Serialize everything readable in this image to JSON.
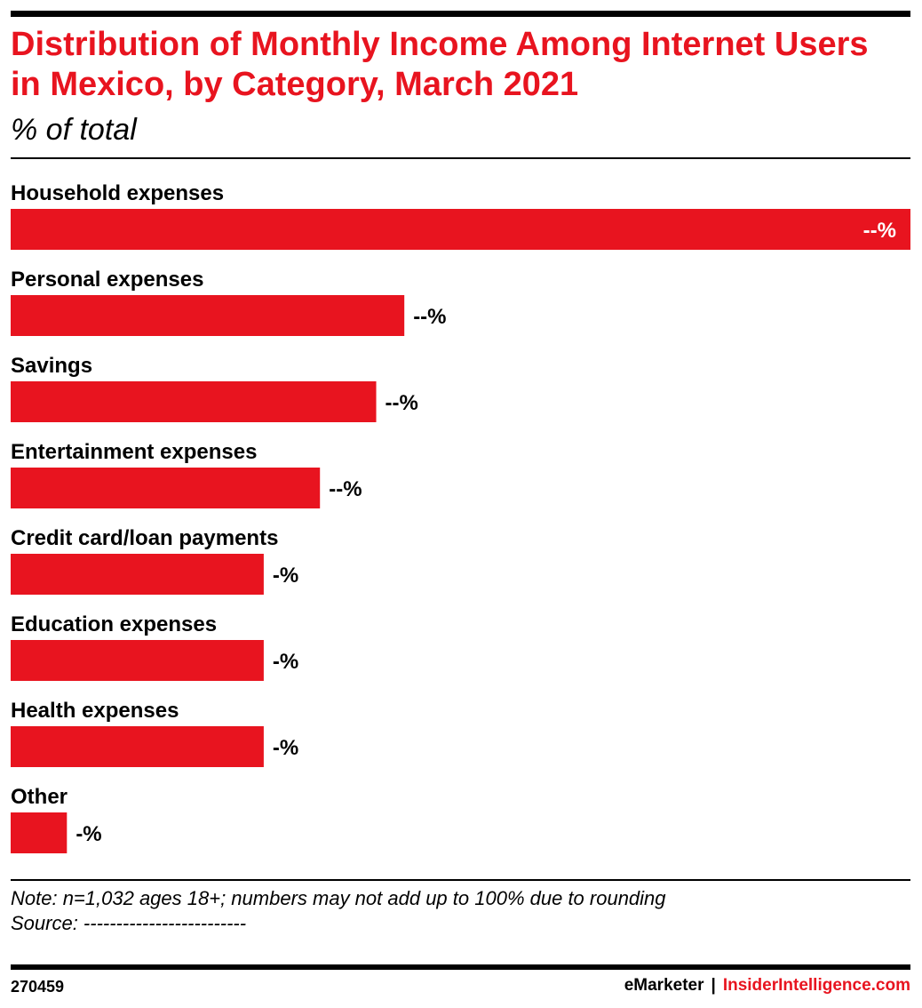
{
  "header": {
    "title": "Distribution of Monthly Income Among Internet Users in Mexico, by Category, March 2021",
    "subtitle": "% of total"
  },
  "chart_data": {
    "type": "bar",
    "orientation": "horizontal",
    "categories": [
      "Household expenses",
      "Personal expenses",
      "Savings",
      "Entertainment expenses",
      "Credit card/loan payments",
      "Education expenses",
      "Health expenses",
      "Other"
    ],
    "values": [
      32,
      14,
      13,
      11,
      9,
      9,
      9,
      2
    ],
    "value_labels": [
      "--%",
      "--%",
      "--%",
      "--%",
      "-%",
      "-%",
      "-%",
      "-%"
    ],
    "xlim": [
      0,
      32
    ],
    "bar_color": "#e8141f"
  },
  "footer": {
    "note": "Note: n=1,032 ages 18+; numbers may not add up to 100% due to rounding",
    "source": "Source: -------------------------",
    "chart_id": "270459",
    "brand_left": "eMarketer",
    "brand_sep": "|",
    "brand_right": "InsiderIntelligence.com"
  }
}
